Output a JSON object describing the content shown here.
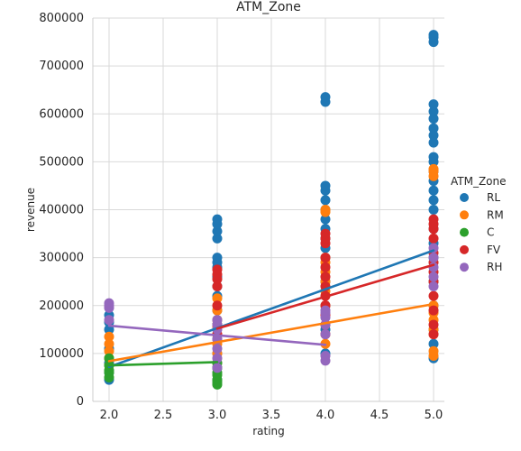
{
  "chart_data": {
    "type": "scatter",
    "title": "ATM_Zone",
    "xlabel": "rating",
    "ylabel": "revenue",
    "xlim": [
      1.85,
      5.1
    ],
    "ylim": [
      0,
      800000
    ],
    "x_ticks": [
      "2.0",
      "2.5",
      "3.0",
      "3.5",
      "4.0",
      "4.5",
      "5.0"
    ],
    "y_ticks": [
      "0",
      "100000",
      "200000",
      "300000",
      "400000",
      "500000",
      "600000",
      "700000",
      "800000"
    ],
    "grid": true,
    "legend_title": "ATM_Zone",
    "legend_position": "right",
    "series": [
      {
        "name": "RL",
        "color": "#1f77b4",
        "points": [
          [
            2,
            45000
          ],
          [
            2,
            60000
          ],
          [
            2,
            80000
          ],
          [
            2,
            110000
          ],
          [
            2,
            150000
          ],
          [
            2,
            165000
          ],
          [
            2,
            180000
          ],
          [
            3,
            45000
          ],
          [
            3,
            70000
          ],
          [
            3,
            100000
          ],
          [
            3,
            130000
          ],
          [
            3,
            160000
          ],
          [
            3,
            190000
          ],
          [
            3,
            220000
          ],
          [
            3,
            240000
          ],
          [
            3,
            260000
          ],
          [
            3,
            280000
          ],
          [
            3,
            290000
          ],
          [
            3,
            300000
          ],
          [
            3,
            340000
          ],
          [
            3,
            355000
          ],
          [
            3,
            370000
          ],
          [
            3,
            380000
          ],
          [
            4,
            100000
          ],
          [
            4,
            150000
          ],
          [
            4,
            200000
          ],
          [
            4,
            250000
          ],
          [
            4,
            300000
          ],
          [
            4,
            320000
          ],
          [
            4,
            340000
          ],
          [
            4,
            360000
          ],
          [
            4,
            380000
          ],
          [
            4,
            400000
          ],
          [
            4,
            420000
          ],
          [
            4,
            440000
          ],
          [
            4,
            450000
          ],
          [
            4,
            625000
          ],
          [
            4,
            635000
          ],
          [
            5,
            90000
          ],
          [
            5,
            120000
          ],
          [
            5,
            150000
          ],
          [
            5,
            200000
          ],
          [
            5,
            250000
          ],
          [
            5,
            300000
          ],
          [
            5,
            330000
          ],
          [
            5,
            360000
          ],
          [
            5,
            400000
          ],
          [
            5,
            420000
          ],
          [
            5,
            440000
          ],
          [
            5,
            460000
          ],
          [
            5,
            480000
          ],
          [
            5,
            500000
          ],
          [
            5,
            510000
          ],
          [
            5,
            540000
          ],
          [
            5,
            555000
          ],
          [
            5,
            570000
          ],
          [
            5,
            590000
          ],
          [
            5,
            605000
          ],
          [
            5,
            620000
          ],
          [
            5,
            750000
          ],
          [
            5,
            760000
          ],
          [
            5,
            765000
          ]
        ],
        "fit": [
          [
            2,
            72000
          ],
          [
            5,
            315000
          ]
        ]
      },
      {
        "name": "RM",
        "color": "#ff7f0e",
        "points": [
          [
            2,
            75000
          ],
          [
            2,
            90000
          ],
          [
            2,
            105000
          ],
          [
            2,
            120000
          ],
          [
            2,
            135000
          ],
          [
            3,
            80000
          ],
          [
            3,
            100000
          ],
          [
            3,
            120000
          ],
          [
            3,
            140000
          ],
          [
            3,
            155000
          ],
          [
            3,
            170000
          ],
          [
            3,
            190000
          ],
          [
            3,
            215000
          ],
          [
            4,
            120000
          ],
          [
            4,
            140000
          ],
          [
            4,
            160000
          ],
          [
            4,
            200000
          ],
          [
            4,
            230000
          ],
          [
            4,
            250000
          ],
          [
            4,
            270000
          ],
          [
            4,
            290000
          ],
          [
            4,
            300000
          ],
          [
            4,
            395000
          ],
          [
            4,
            400000
          ],
          [
            5,
            95000
          ],
          [
            5,
            105000
          ],
          [
            5,
            140000
          ],
          [
            5,
            150000
          ],
          [
            5,
            170000
          ],
          [
            5,
            185000
          ],
          [
            5,
            200000
          ],
          [
            5,
            470000
          ],
          [
            5,
            480000
          ],
          [
            5,
            485000
          ]
        ],
        "fit": [
          [
            2,
            84000
          ],
          [
            5,
            203000
          ]
        ]
      },
      {
        "name": "C",
        "color": "#2ca02c",
        "points": [
          [
            2,
            50000
          ],
          [
            2,
            60000
          ],
          [
            2,
            65000
          ],
          [
            2,
            75000
          ],
          [
            2,
            90000
          ],
          [
            3,
            35000
          ],
          [
            3,
            40000
          ],
          [
            3,
            45000
          ],
          [
            3,
            55000
          ],
          [
            3,
            60000
          ],
          [
            3,
            70000
          ],
          [
            3,
            80000
          ]
        ],
        "fit": [
          [
            2,
            75000
          ],
          [
            3,
            82000
          ]
        ]
      },
      {
        "name": "FV",
        "color": "#d62728",
        "points": [
          [
            3,
            140000
          ],
          [
            3,
            160000
          ],
          [
            3,
            200000
          ],
          [
            3,
            240000
          ],
          [
            3,
            255000
          ],
          [
            3,
            265000
          ],
          [
            3,
            275000
          ],
          [
            4,
            140000
          ],
          [
            4,
            160000
          ],
          [
            4,
            180000
          ],
          [
            4,
            200000
          ],
          [
            4,
            220000
          ],
          [
            4,
            240000
          ],
          [
            4,
            260000
          ],
          [
            4,
            280000
          ],
          [
            4,
            300000
          ],
          [
            4,
            330000
          ],
          [
            4,
            340000
          ],
          [
            4,
            350000
          ],
          [
            5,
            140000
          ],
          [
            5,
            160000
          ],
          [
            5,
            190000
          ],
          [
            5,
            220000
          ],
          [
            5,
            250000
          ],
          [
            5,
            270000
          ],
          [
            5,
            290000
          ],
          [
            5,
            310000
          ],
          [
            5,
            340000
          ],
          [
            5,
            360000
          ],
          [
            5,
            370000
          ],
          [
            5,
            380000
          ]
        ],
        "fit": [
          [
            3,
            152000
          ],
          [
            5,
            285000
          ]
        ]
      },
      {
        "name": "RH",
        "color": "#9467bd",
        "points": [
          [
            2,
            170000
          ],
          [
            2,
            195000
          ],
          [
            2,
            200000
          ],
          [
            2,
            205000
          ],
          [
            3,
            70000
          ],
          [
            3,
            90000
          ],
          [
            3,
            110000
          ],
          [
            3,
            130000
          ],
          [
            3,
            150000
          ],
          [
            3,
            160000
          ],
          [
            3,
            170000
          ],
          [
            4,
            85000
          ],
          [
            4,
            95000
          ],
          [
            4,
            140000
          ],
          [
            4,
            160000
          ],
          [
            4,
            175000
          ],
          [
            4,
            185000
          ],
          [
            4,
            190000
          ],
          [
            5,
            240000
          ],
          [
            5,
            260000
          ],
          [
            5,
            280000
          ],
          [
            5,
            300000
          ],
          [
            5,
            320000
          ]
        ],
        "fit": [
          [
            2,
            158000
          ],
          [
            4,
            118000
          ]
        ]
      }
    ]
  }
}
